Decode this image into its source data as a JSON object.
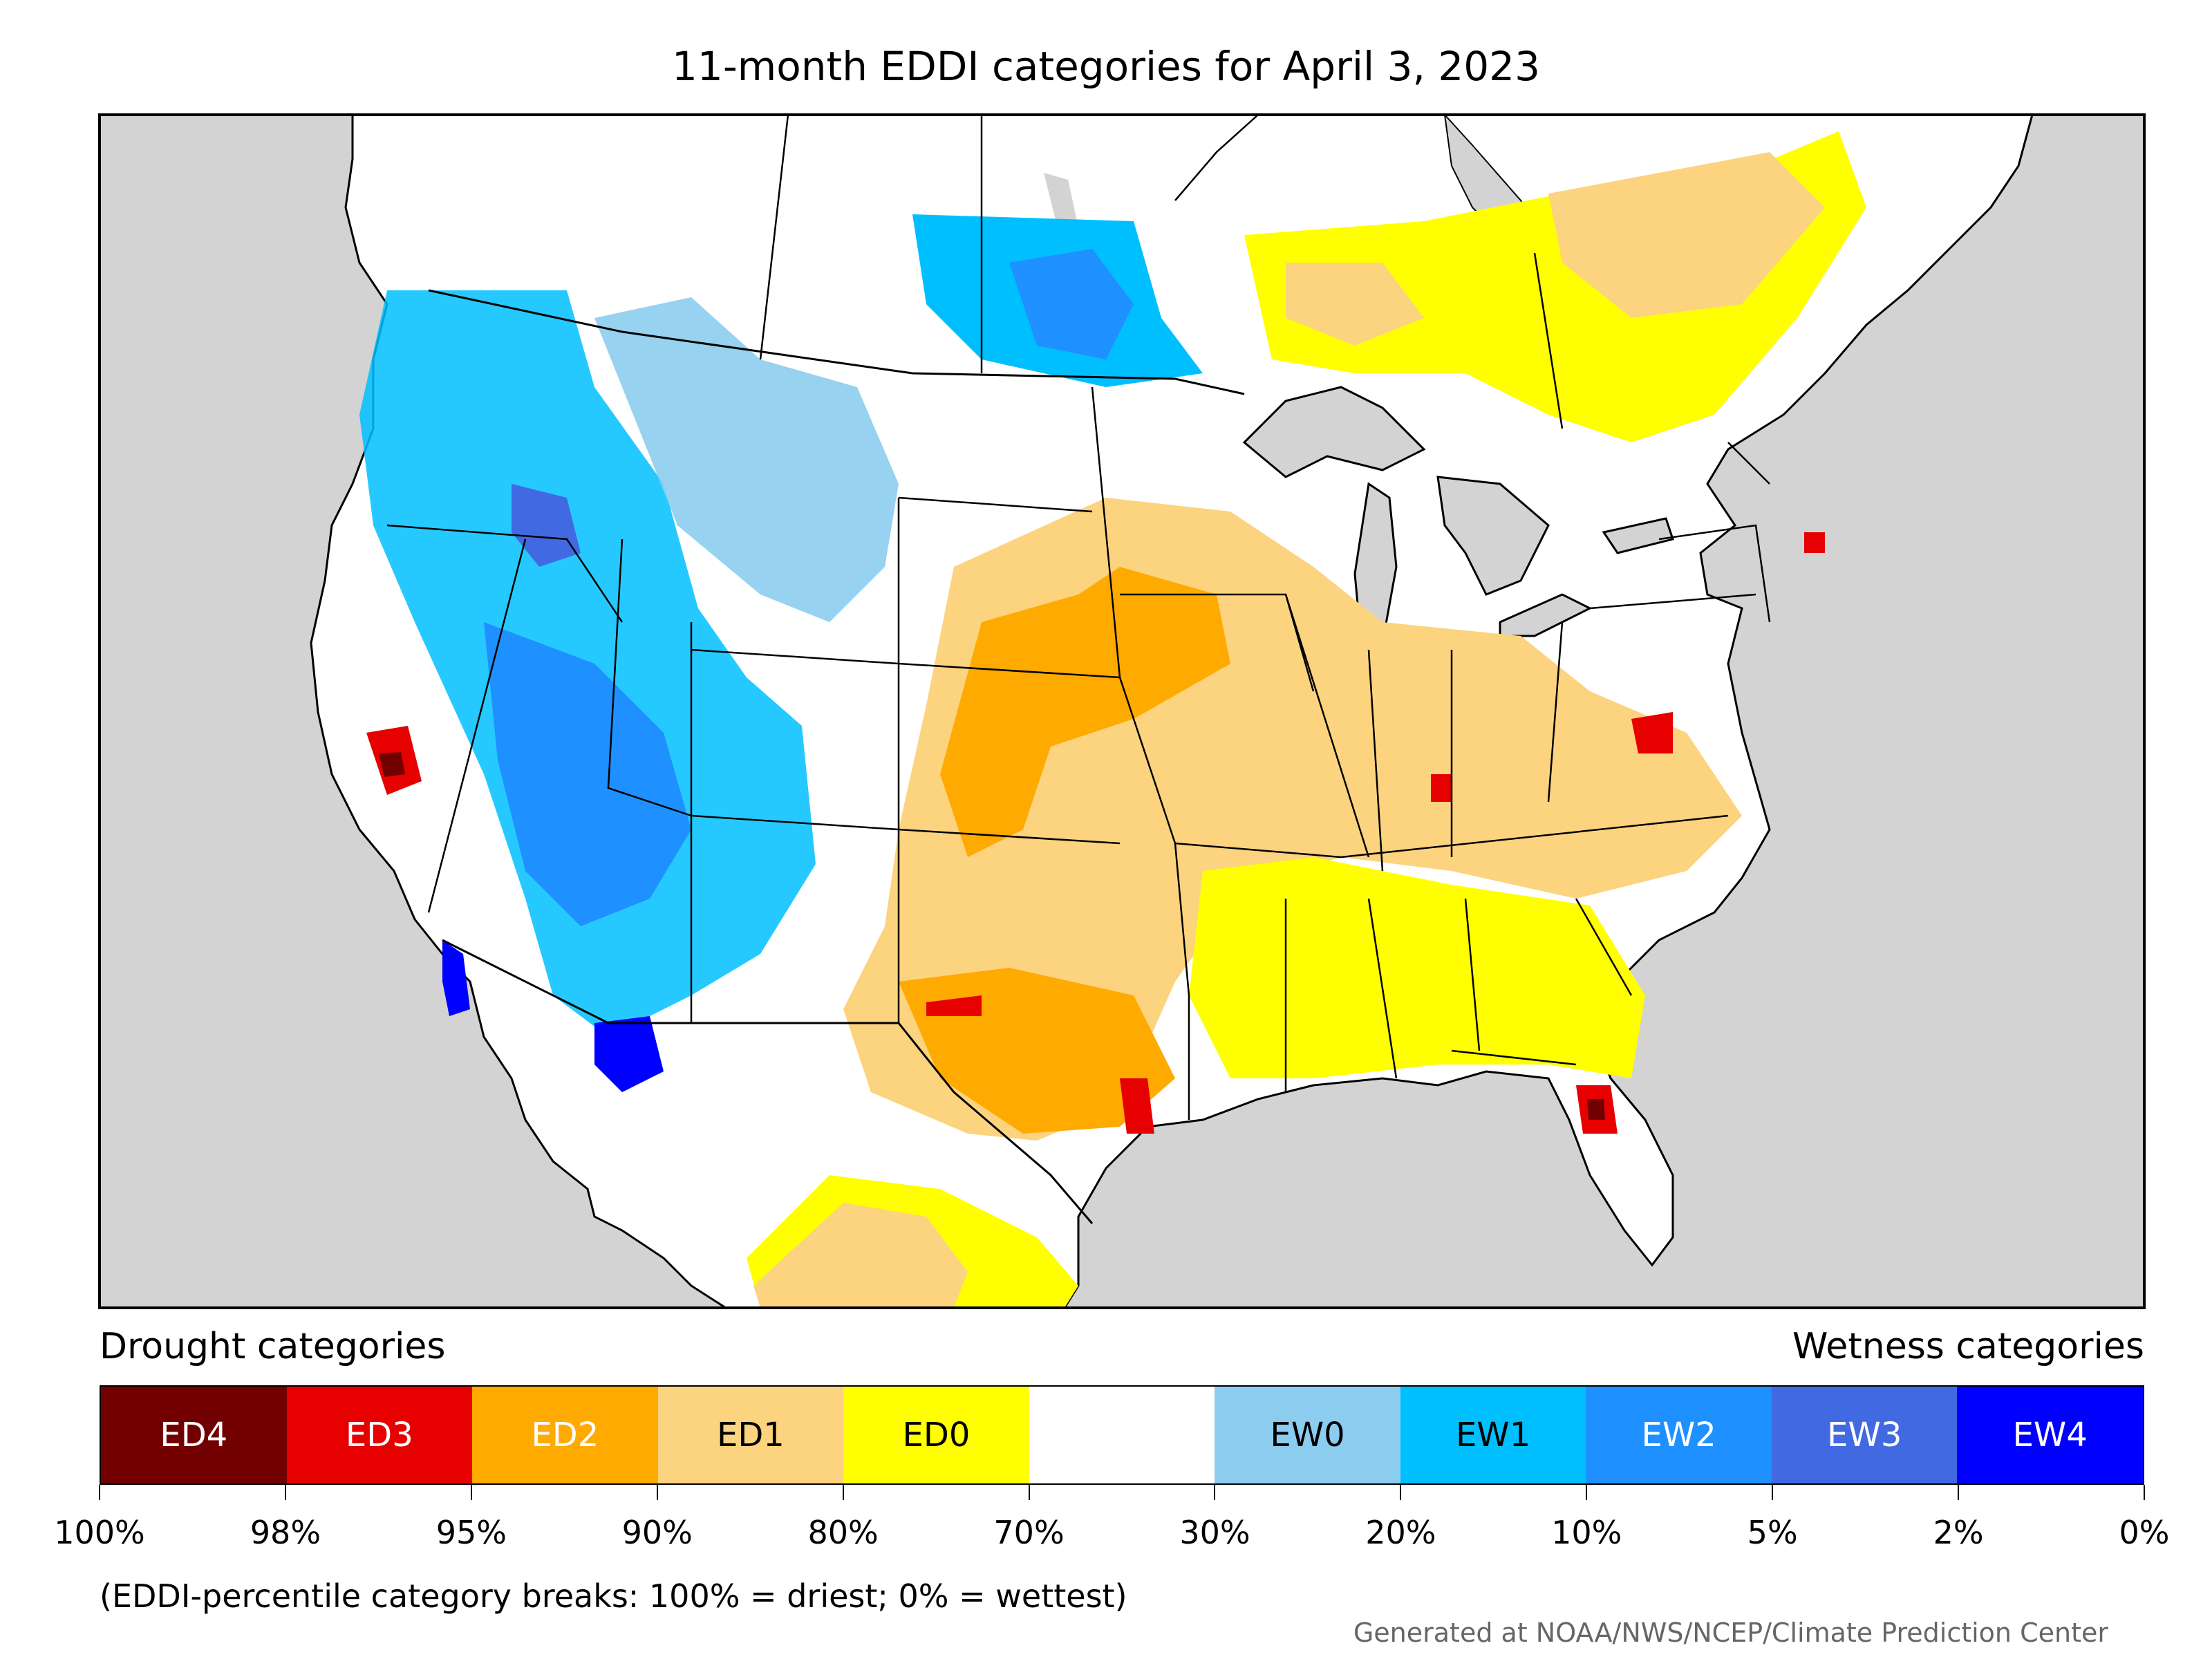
{
  "title": "11-month EDDI categories for April 3, 2023",
  "legend": {
    "left_heading": "Drought categories",
    "right_heading": "Wetness categories",
    "categories": [
      {
        "label": "ED4",
        "color": "#730000",
        "text_color": "#ffffff"
      },
      {
        "label": "ED3",
        "color": "#e60000",
        "text_color": "#ffffff"
      },
      {
        "label": "ED2",
        "color": "#ffaa00",
        "text_color": "#ffffff"
      },
      {
        "label": "ED1",
        "color": "#fcd37f",
        "text_color": "#000000"
      },
      {
        "label": "ED0",
        "color": "#ffff00",
        "text_color": "#000000"
      },
      {
        "label": "",
        "color": "#ffffff",
        "text_color": "#000000"
      },
      {
        "label": "EW0",
        "color": "#8ccdef",
        "text_color": "#000000"
      },
      {
        "label": "EW1",
        "color": "#00bfff",
        "text_color": "#000000"
      },
      {
        "label": "EW2",
        "color": "#1e90ff",
        "text_color": "#ffffff"
      },
      {
        "label": "EW3",
        "color": "#4169e1",
        "text_color": "#ffffff"
      },
      {
        "label": "EW4",
        "color": "#0000ff",
        "text_color": "#ffffff"
      }
    ],
    "breaks": [
      "100%",
      "98%",
      "95%",
      "90%",
      "80%",
      "70%",
      "30%",
      "20%",
      "10%",
      "5%",
      "2%",
      "0%"
    ]
  },
  "note": "(EDDI-percentile category breaks: 100% = driest; 0% = wettest)",
  "credit": "Generated at NOAA/NWS/NCEP/Climate Prediction Center",
  "map": {
    "ocean_color": "#d3d3d3",
    "land_color": "#ffffff"
  }
}
